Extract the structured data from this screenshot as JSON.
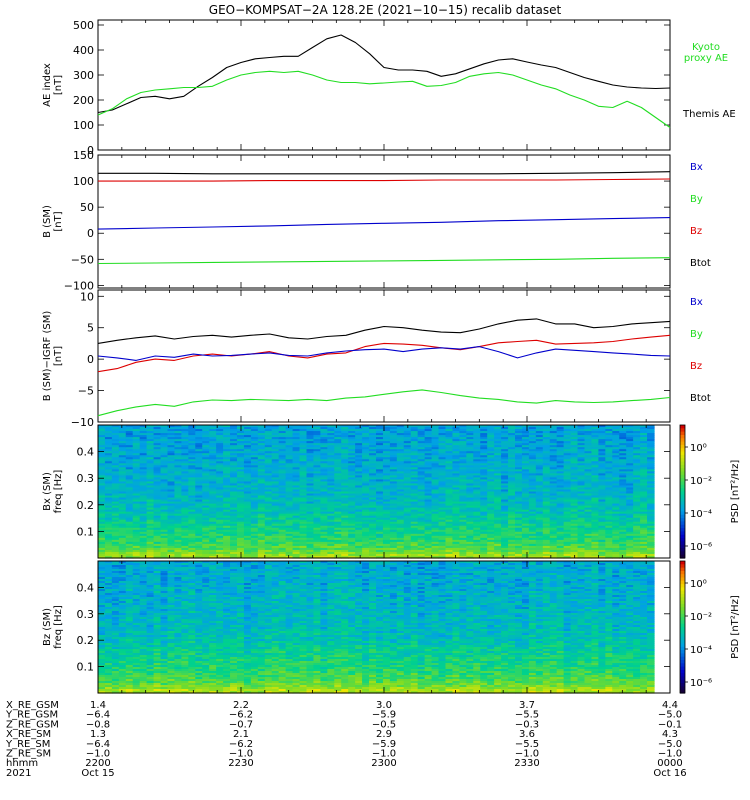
{
  "title": "GEO−KOMPSAT−2A 128.2E (2021−10−15) recalib dataset",
  "x_ticks_n": 5,
  "panels": [
    {
      "id": "ae",
      "ylabel": [
        "AE index",
        "[nT]"
      ],
      "ylim": [
        0,
        520
      ],
      "yticks": [
        "0",
        "100",
        "200",
        "300",
        "400",
        "500"
      ],
      "ytick_values": [
        0,
        100,
        200,
        300,
        400,
        500
      ],
      "legend": [
        {
          "text": "Kyoto",
          "color": "#22dd22"
        },
        {
          "text": "proxy AE",
          "color": "#22dd22"
        },
        {
          "text": "Themis AE",
          "color": "#000000"
        }
      ]
    },
    {
      "id": "bsm",
      "ylabel": [
        "B (SM)",
        "[nT]"
      ],
      "ylim": [
        -105,
        150
      ],
      "yticks": [
        "−100",
        "−50",
        "0",
        "50",
        "100",
        "150"
      ],
      "ytick_values": [
        -100,
        -50,
        0,
        50,
        100,
        150
      ],
      "legend": [
        {
          "text": "Bx",
          "color": "#0000cc"
        },
        {
          "text": "By",
          "color": "#22dd22"
        },
        {
          "text": "Bz",
          "color": "#dd0000"
        },
        {
          "text": "Btot",
          "color": "#000000"
        }
      ]
    },
    {
      "id": "bigrf",
      "ylabel": [
        "B (SM)−IGRF (SM)",
        "[nT]"
      ],
      "ylim": [
        -10,
        11
      ],
      "yticks": [
        "−10",
        "−5",
        "0",
        "5",
        "10"
      ],
      "ytick_values": [
        -10,
        -5,
        0,
        5,
        10
      ],
      "legend": [
        {
          "text": "Bx",
          "color": "#0000cc"
        },
        {
          "text": "By",
          "color": "#22dd22"
        },
        {
          "text": "Bz",
          "color": "#dd0000"
        },
        {
          "text": "Btot",
          "color": "#000000"
        }
      ]
    },
    {
      "id": "bxspec",
      "ylabel": [
        "Bx (SM)",
        "freq [Hz]"
      ],
      "ylim": [
        0,
        0.5
      ],
      "yticks": [
        "0.1",
        "0.2",
        "0.3",
        "0.4"
      ],
      "ytick_values": [
        0.1,
        0.2,
        0.3,
        0.4
      ],
      "colorbar": {
        "label": "PSD [nT²/Hz]",
        "ticks": [
          "10⁰",
          "10⁻²",
          "10⁻⁴",
          "10⁻⁶"
        ]
      }
    },
    {
      "id": "bzspec",
      "ylabel": [
        "Bz (SM)",
        "freq [Hz]"
      ],
      "ylim": [
        0,
        0.5
      ],
      "yticks": [
        "0.1",
        "0.2",
        "0.3",
        "0.4"
      ],
      "ytick_values": [
        0.1,
        0.2,
        0.3,
        0.4
      ],
      "colorbar": {
        "label": "PSD [nT²/Hz]",
        "ticks": [
          "10⁰",
          "10⁻²",
          "10⁻⁴",
          "10⁻⁶"
        ]
      }
    }
  ],
  "ephemeris": {
    "labels": [
      "X_RE_GSM",
      "Y_RE_GSM",
      "Z_RE_GSM",
      "X_RE_SM",
      "Y_RE_SM",
      "Z_RE_SM",
      "hhmm",
      "2021"
    ],
    "columns": [
      [
        "1.4",
        "−6.4",
        "−0.8",
        "1.3",
        "−6.4",
        "−1.0",
        "2200",
        "Oct 15"
      ],
      [
        "2.2",
        "−6.2",
        "−0.7",
        "2.1",
        "−6.2",
        "−1.0",
        "2230",
        ""
      ],
      [
        "3.0",
        "−5.9",
        "−0.5",
        "2.9",
        "−5.9",
        "−1.0",
        "2300",
        ""
      ],
      [
        "3.7",
        "−5.5",
        "−0.3",
        "3.6",
        "−5.5",
        "−1.0",
        "2330",
        ""
      ],
      [
        "4.4",
        "−5.0",
        "−0.1",
        "4.3",
        "−5.0",
        "−1.0",
        "0000",
        "Oct 16"
      ]
    ]
  },
  "chart_data": [
    {
      "type": "line",
      "panel": "ae",
      "x": [
        0,
        3,
        6,
        9,
        12,
        15,
        18,
        21,
        24,
        27,
        30,
        33,
        36,
        39,
        42,
        45,
        48,
        51,
        54,
        57,
        60,
        63,
        66,
        69,
        72,
        75,
        78,
        81,
        84,
        87,
        90,
        93,
        96,
        99,
        102,
        105,
        108,
        111,
        114,
        117,
        120
      ],
      "series": [
        {
          "name": "Themis AE",
          "color": "#000000",
          "values": [
            150,
            160,
            185,
            210,
            215,
            205,
            215,
            255,
            290,
            330,
            350,
            365,
            370,
            375,
            375,
            410,
            445,
            460,
            430,
            385,
            330,
            320,
            320,
            315,
            295,
            305,
            325,
            345,
            360,
            365,
            352,
            340,
            330,
            310,
            290,
            275,
            260,
            252,
            248,
            246,
            248
          ]
        },
        {
          "name": "Kyoto proxy AE",
          "color": "#22dd22",
          "values": [
            140,
            165,
            205,
            230,
            240,
            245,
            250,
            250,
            255,
            280,
            300,
            310,
            315,
            310,
            315,
            300,
            280,
            270,
            270,
            265,
            268,
            272,
            275,
            255,
            258,
            270,
            295,
            305,
            310,
            300,
            280,
            260,
            245,
            220,
            200,
            175,
            170,
            195,
            170,
            130,
            90
          ]
        }
      ]
    },
    {
      "type": "line",
      "panel": "bsm",
      "x": [
        0,
        12,
        24,
        36,
        48,
        60,
        72,
        84,
        96,
        108,
        120
      ],
      "series": [
        {
          "name": "Btot",
          "color": "#000000",
          "values": [
            115,
            115,
            114,
            114,
            114,
            114,
            114,
            114,
            115,
            116,
            118
          ]
        },
        {
          "name": "Bz",
          "color": "#dd0000",
          "values": [
            100,
            100,
            100,
            101,
            101,
            101,
            102,
            102,
            102,
            103,
            104
          ]
        },
        {
          "name": "Bx",
          "color": "#0000cc",
          "values": [
            8,
            10,
            12,
            14,
            17,
            19,
            21,
            24,
            26,
            28,
            30
          ]
        },
        {
          "name": "By",
          "color": "#22dd22",
          "values": [
            -58,
            -57,
            -56,
            -55,
            -54,
            -53,
            -52,
            -51,
            -50,
            -48,
            -47
          ]
        }
      ]
    },
    {
      "type": "line",
      "panel": "bigrf",
      "x": [
        0,
        4,
        8,
        12,
        16,
        20,
        24,
        28,
        32,
        36,
        40,
        44,
        48,
        52,
        56,
        60,
        64,
        68,
        72,
        76,
        80,
        84,
        88,
        92,
        96,
        100,
        104,
        108,
        112,
        116,
        120
      ],
      "series": [
        {
          "name": "Btot",
          "color": "#000000",
          "values": [
            2.5,
            3.0,
            3.4,
            3.7,
            3.2,
            3.6,
            3.8,
            3.5,
            3.8,
            4.0,
            3.4,
            3.2,
            3.6,
            3.8,
            4.6,
            5.2,
            5.0,
            4.6,
            4.3,
            4.2,
            4.8,
            5.6,
            6.2,
            6.4,
            5.6,
            5.6,
            5.0,
            5.2,
            5.6,
            5.8,
            6.0
          ]
        },
        {
          "name": "Bz",
          "color": "#dd0000",
          "values": [
            -2.0,
            -1.5,
            -0.5,
            0.0,
            -0.2,
            0.5,
            0.8,
            0.5,
            0.8,
            1.2,
            0.5,
            0.2,
            0.8,
            1.0,
            2.0,
            2.5,
            2.4,
            2.2,
            1.8,
            1.5,
            2.0,
            2.6,
            2.8,
            3.0,
            2.4,
            2.5,
            2.6,
            2.8,
            3.2,
            3.5,
            3.8
          ]
        },
        {
          "name": "Bx",
          "color": "#0000cc",
          "values": [
            0.5,
            0.2,
            -0.2,
            0.5,
            0.3,
            0.8,
            0.5,
            0.6,
            0.8,
            1.0,
            0.6,
            0.5,
            1.0,
            1.3,
            1.5,
            1.6,
            1.2,
            1.6,
            1.8,
            1.6,
            2.0,
            1.2,
            0.2,
            1.0,
            1.6,
            1.4,
            1.2,
            1.0,
            0.8,
            0.6,
            0.5
          ]
        },
        {
          "name": "By",
          "color": "#22dd22",
          "values": [
            -9.0,
            -8.2,
            -7.6,
            -7.2,
            -7.5,
            -6.8,
            -6.5,
            -6.6,
            -6.4,
            -6.5,
            -6.6,
            -6.4,
            -6.6,
            -6.2,
            -6.0,
            -5.6,
            -5.2,
            -4.9,
            -5.3,
            -5.8,
            -6.2,
            -6.4,
            -6.8,
            -7.0,
            -6.6,
            -6.8,
            -6.9,
            -6.8,
            -6.6,
            -6.4,
            -6.1
          ]
        }
      ]
    },
    {
      "type": "heatmap",
      "panel": "bxspec",
      "x_range": [
        0,
        120
      ],
      "y_range": [
        0,
        0.5
      ],
      "zlabel": "PSD",
      "zscale": "log",
      "zlim": [
        -8,
        2
      ],
      "description_of_values": "log10 PSD by frequency band, low frequencies strongest",
      "band_freqs": [
        0.01,
        0.03,
        0.06,
        0.1,
        0.15,
        0.2,
        0.25,
        0.3,
        0.35,
        0.4,
        0.45
      ],
      "band_values": [
        -1.0,
        -1.8,
        -2.4,
        -2.8,
        -3.3,
        -3.7,
        -3.9,
        -4.0,
        -4.1,
        -4.2,
        -4.3
      ]
    },
    {
      "type": "heatmap",
      "panel": "bzspec",
      "x_range": [
        0,
        120
      ],
      "y_range": [
        0,
        0.5
      ],
      "zlabel": "PSD",
      "zscale": "log",
      "zlim": [
        -8,
        2
      ],
      "band_freqs": [
        0.01,
        0.03,
        0.06,
        0.1,
        0.15,
        0.2,
        0.25,
        0.3,
        0.35,
        0.4,
        0.45
      ],
      "band_values": [
        -0.9,
        -1.7,
        -2.3,
        -2.7,
        -3.1,
        -3.6,
        -3.8,
        -3.9,
        -4.0,
        -4.1,
        -4.2
      ]
    }
  ]
}
